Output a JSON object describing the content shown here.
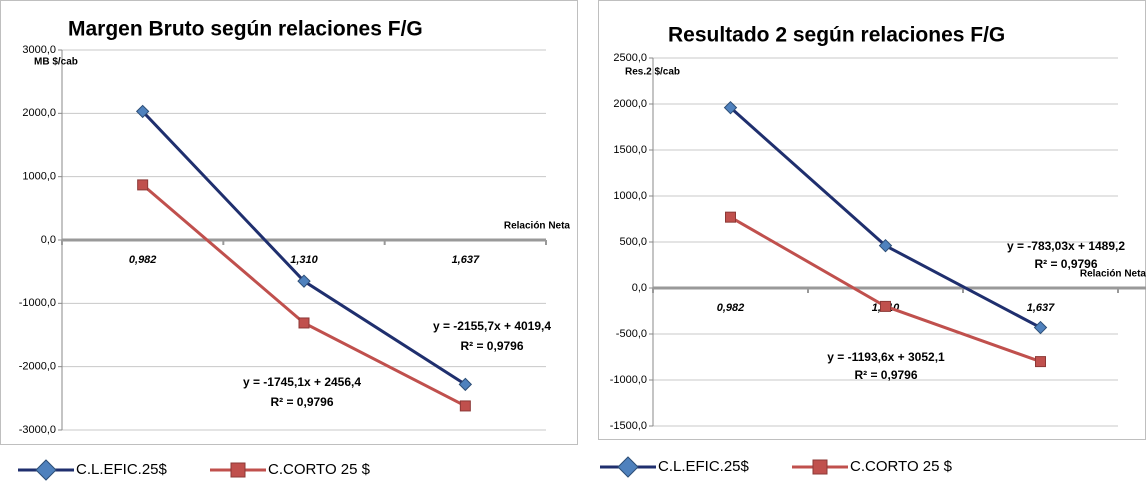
{
  "chart_data": [
    {
      "type": "line",
      "title": "Margen Bruto  según relaciones F/G",
      "y_label": "MB $/cab",
      "x_label": "Relación  Neta",
      "categories": [
        "0,982",
        "1,310",
        "1,637"
      ],
      "series": [
        {
          "name": "C.L.EFIC.25$",
          "color": "#1f2f6e",
          "marker_color": "#4f81bd",
          "marker": "diamond",
          "values": [
            2030,
            -650,
            -2280
          ]
        },
        {
          "name": "C.CORTO 25 $",
          "color": "#c0504d",
          "marker_color": "#c0504d",
          "marker": "square",
          "values": [
            870,
            -1310,
            -2620
          ]
        }
      ],
      "ylim": [
        -3000,
        3000
      ],
      "yticks": [
        {
          "value": -3000,
          "label": "-3000,0"
        },
        {
          "value": -2000,
          "label": "-2000,0"
        },
        {
          "value": -1000,
          "label": "-1000,0"
        },
        {
          "value": 0,
          "label": "0,0"
        },
        {
          "value": 1000,
          "label": "1000,0"
        },
        {
          "value": 2000,
          "label": "2000,0"
        },
        {
          "value": 3000,
          "label": "3000,0"
        }
      ],
      "grid": true,
      "annotations": [
        "y = -2155,7x + 4019,4",
        "R² = 0,9796",
        "y = -1745,1x + 2456,4",
        "R² = 0,9796"
      ]
    },
    {
      "type": "line",
      "title": "Resultado 2 según relaciones F/G",
      "y_label": "Res.2  $/cab",
      "x_label": "Relación  Neta",
      "categories": [
        "0,982",
        "1,310",
        "1,637"
      ],
      "series": [
        {
          "name": "C.L.EFIC.25$",
          "color": "#1f2f6e",
          "marker_color": "#4f81bd",
          "marker": "diamond",
          "values": [
            1960,
            460,
            -430
          ]
        },
        {
          "name": "C.CORTO 25 $",
          "color": "#c0504d",
          "marker_color": "#c0504d",
          "marker": "square",
          "values": [
            770,
            -200,
            -800
          ]
        }
      ],
      "ylim": [
        -1500,
        2500
      ],
      "yticks": [
        {
          "value": -1500,
          "label": "-1500,0"
        },
        {
          "value": -1000,
          "label": "-1000,0"
        },
        {
          "value": -500,
          "label": "-500,0"
        },
        {
          "value": 0,
          "label": "0,0"
        },
        {
          "value": 500,
          "label": "500,0"
        },
        {
          "value": 1000,
          "label": "1000,0"
        },
        {
          "value": 1500,
          "label": "1500,0"
        },
        {
          "value": 2000,
          "label": "2000,0"
        },
        {
          "value": 2500,
          "label": "2500,0"
        }
      ],
      "grid": true,
      "annotations": [
        "y = -783,03x + 1489,2",
        "R² = 0,9796",
        "y = -1193,6x + 3052,1",
        "R² = 0,9796"
      ]
    }
  ]
}
